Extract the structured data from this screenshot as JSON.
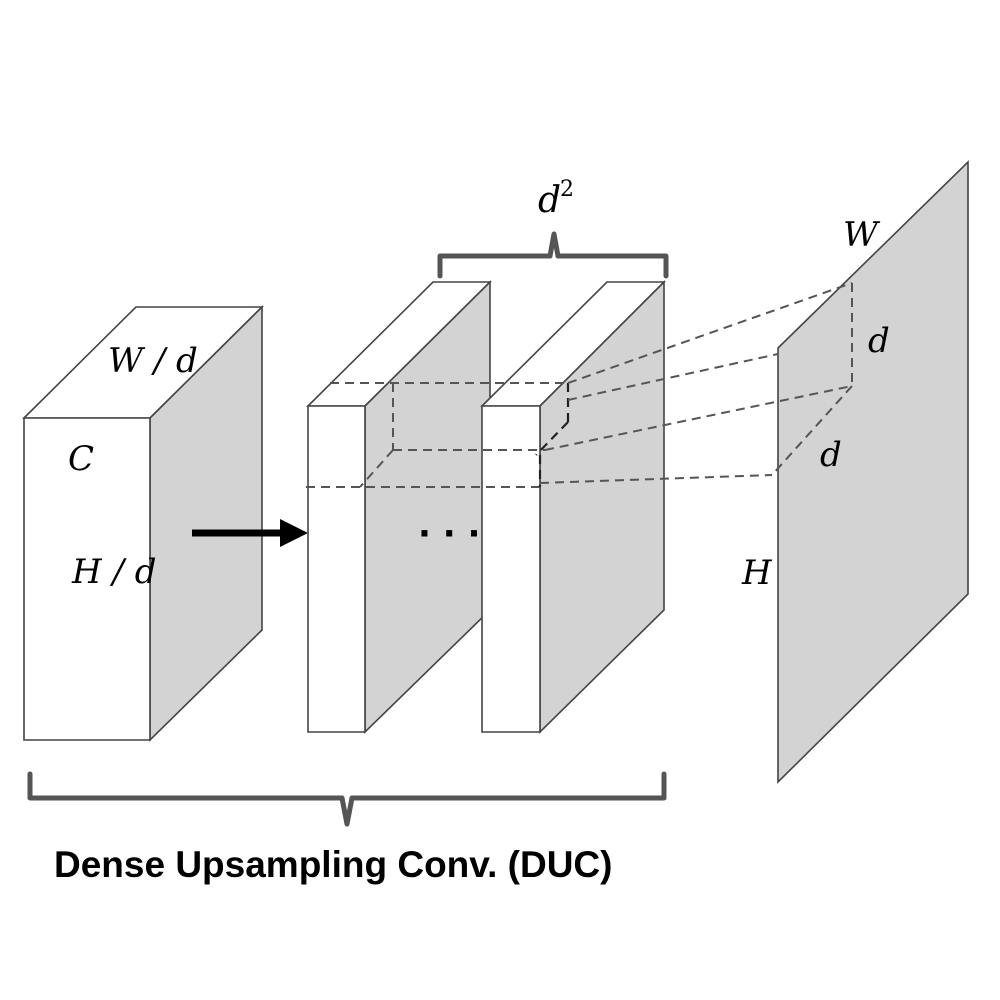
{
  "caption": "Dense Upsampling Conv. (DUC)",
  "labels": {
    "input_width": "W / d",
    "input_channels": "C",
    "input_height": "H / d",
    "channels_squared": "d",
    "channels_squared_exp": "2",
    "output_width": "W",
    "output_height": "H",
    "block_d_vertical": "d",
    "block_d_horizontal": "d",
    "ellipsis": "· · ·"
  },
  "colors": {
    "front_face": "#ffffff",
    "side_face": "#d3d3d3",
    "top_face": "#ffffff",
    "output_plane": "#d3d3d3",
    "arrow": "#000000",
    "brace": "#555555"
  }
}
